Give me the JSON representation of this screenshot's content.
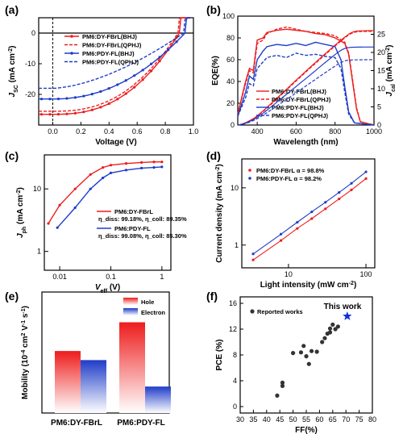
{
  "chart_data": [
    {
      "panel": "(a)",
      "type": "line",
      "xlabel": "Voltage (V)",
      "ylabel": "J_SC (mA cm^-2)",
      "xlim": [
        -0.1,
        1.0
      ],
      "ylim": [
        -30,
        5
      ],
      "xticks": [
        "0.0",
        "0.2",
        "0.4",
        "0.6",
        "0.8",
        "1.0"
      ],
      "yticks": [
        "0",
        "-10",
        "-20"
      ],
      "series": [
        {
          "name": "PM6:DY-FBrL(BHJ)",
          "color": "#ee1c1c",
          "style": "solid-marker",
          "jsc": -26.5,
          "voc": 0.9,
          "ff": 0.76
        },
        {
          "name": "PM6:DY-FBrL(QPHJ)",
          "color": "#ee1c1c",
          "style": "dashed",
          "jsc": -25.5,
          "voc": 0.89,
          "ff": 0.76
        },
        {
          "name": "PM6:PDY-FL(BHJ)",
          "color": "#1f3cc8",
          "style": "solid-marker",
          "jsc": -21.5,
          "voc": 0.94,
          "ff": 0.72
        },
        {
          "name": "PM6:PDY-FL(QPHJ)",
          "color": "#1f3cc8",
          "style": "dashed",
          "jsc": -18.0,
          "voc": 0.93,
          "ff": 0.63
        }
      ]
    },
    {
      "panel": "(b)",
      "type": "line",
      "xlabel": "Wavelength (nm)",
      "ylabel": "EQE(%)",
      "ylabel2": "J_cal (mA cm^-2)",
      "xlim": [
        300,
        1000
      ],
      "ylim": [
        0,
        100
      ],
      "ylim2": [
        0,
        30
      ],
      "xticks": [
        "400",
        "600",
        "800",
        "1000"
      ],
      "yticks": [
        "0",
        "20",
        "40",
        "60",
        "80",
        "100"
      ],
      "yticks2": [
        "0",
        "5",
        "10",
        "15",
        "20",
        "25"
      ],
      "series": [
        {
          "name": "PM6:DY-FBrL(BHJ)",
          "color": "#ee1c1c",
          "style": "solid",
          "x": [
            300,
            340,
            360,
            380,
            400,
            430,
            450,
            500,
            550,
            600,
            650,
            700,
            750,
            800,
            850,
            870,
            890,
            910,
            930,
            1000
          ],
          "y": [
            10,
            40,
            52,
            50,
            78,
            80,
            85,
            87,
            88,
            87,
            86,
            84,
            83,
            80,
            75,
            65,
            40,
            15,
            3,
            0
          ],
          "jsc_final": 26.0
        },
        {
          "name": "PM6:DY-FBrL(QPHJ)",
          "color": "#ee1c1c",
          "style": "dashed",
          "x": [
            300,
            340,
            360,
            380,
            400,
            430,
            450,
            500,
            550,
            600,
            650,
            700,
            750,
            800,
            850,
            870,
            890,
            910,
            930,
            1000
          ],
          "y": [
            10,
            38,
            50,
            48,
            75,
            78,
            84,
            88,
            90,
            88,
            86,
            85,
            84,
            82,
            76,
            66,
            42,
            16,
            3,
            0
          ],
          "jsc_final": 25.8
        },
        {
          "name": "PM6:PDY-FL(BHJ)",
          "color": "#1f3cc8",
          "style": "solid",
          "x": [
            300,
            340,
            360,
            380,
            400,
            430,
            450,
            500,
            550,
            600,
            650,
            700,
            750,
            800,
            830,
            850,
            870,
            900,
            1000
          ],
          "y": [
            8,
            30,
            45,
            42,
            60,
            68,
            72,
            74,
            73,
            75,
            73,
            76,
            74,
            72,
            60,
            35,
            12,
            2,
            0
          ],
          "jsc_final": 21.5
        },
        {
          "name": "PM6:PDY-FL(QPHJ)",
          "color": "#1f3cc8",
          "style": "dashed",
          "x": [
            300,
            340,
            360,
            380,
            400,
            430,
            450,
            500,
            550,
            600,
            650,
            700,
            750,
            800,
            830,
            850,
            870,
            900,
            1000
          ],
          "y": [
            8,
            25,
            38,
            36,
            52,
            58,
            62,
            64,
            62,
            66,
            64,
            65,
            63,
            62,
            52,
            30,
            10,
            2,
            0
          ],
          "jsc_final": 18.0
        }
      ]
    },
    {
      "panel": "(c)",
      "type": "line",
      "xlabel": "V_eff (V)",
      "ylabel": "J_ph (mA cm^-2)",
      "xscale": "log",
      "yscale": "log",
      "xlim": [
        0.005,
        1.5
      ],
      "ylim": [
        0.5,
        35
      ],
      "xticks": [
        "0.01",
        "0.1",
        "1"
      ],
      "yticks": [
        "1",
        "10"
      ],
      "series": [
        {
          "name": "PM6:DY-FBrL",
          "color": "#ee1c1c",
          "x": [
            0.006,
            0.01,
            0.02,
            0.04,
            0.07,
            0.1,
            0.2,
            0.4,
            0.7,
            1.0
          ],
          "y": [
            2.8,
            5.5,
            10,
            17,
            22,
            24,
            25.5,
            26.5,
            27,
            27
          ],
          "annotation": "η_diss: 99.18%, η_coll: 89.35%"
        },
        {
          "name": "PM6:PDY-FL",
          "color": "#1f3cc8",
          "x": [
            0.009,
            0.02,
            0.04,
            0.07,
            0.1,
            0.2,
            0.4,
            0.7,
            1.0
          ],
          "y": [
            2.4,
            5,
            10,
            15,
            18,
            20,
            21.5,
            22,
            22.5
          ],
          "annotation": "η_diss: 99.08%, η_coll: 85.30%"
        }
      ]
    },
    {
      "panel": "(d)",
      "type": "scatter",
      "xlabel": "Light intensity (mW cm^-2)",
      "ylabel": "Current density (mA cm^-2)",
      "xscale": "log",
      "yscale": "log",
      "xlim": [
        2.5,
        130
      ],
      "ylim": [
        0.4,
        32
      ],
      "xticks": [
        "10",
        "100"
      ],
      "yticks": [
        "1",
        "10"
      ],
      "series": [
        {
          "name": "PM6:DY-FBrL",
          "alpha_label": "α = 98.8%",
          "color": "#ee1c1c",
          "x": [
            3.5,
            8,
            13,
            20,
            30,
            45,
            65,
            100
          ],
          "y": [
            0.55,
            1.2,
            1.95,
            2.9,
            4.3,
            6.4,
            9.2,
            14.5
          ]
        },
        {
          "name": "PM6:PDY-FL",
          "alpha_label": "α = 98.2%",
          "color": "#1f3cc8",
          "x": [
            3.5,
            8,
            13,
            20,
            30,
            45,
            65,
            100
          ],
          "y": [
            0.7,
            1.55,
            2.5,
            3.8,
            5.6,
            8.3,
            12,
            19
          ]
        }
      ]
    },
    {
      "panel": "(e)",
      "type": "bar",
      "ylabel": "Mobility (10^-4 cm^2 V^-1 s^-1)",
      "ylim": [
        0,
        16
      ],
      "categories": [
        "PM6:DY-FBrL",
        "PM6:PDY-FL"
      ],
      "series": [
        {
          "name": "Hole",
          "color": "#ee1c1c",
          "values": [
            8.2,
            12.0
          ]
        },
        {
          "name": "Electron",
          "color": "#1f3cc8",
          "values": [
            7.0,
            3.5
          ]
        }
      ]
    },
    {
      "panel": "(f)",
      "type": "scatter",
      "xlabel": "FF(%)",
      "ylabel": "PCE (%)",
      "xlim": [
        30,
        80
      ],
      "ylim": [
        -1,
        17
      ],
      "xticks": [
        "30",
        "35",
        "40",
        "45",
        "50",
        "55",
        "60",
        "65",
        "70",
        "75",
        "80"
      ],
      "yticks": [
        "0",
        "4",
        "8",
        "12",
        "16"
      ],
      "series": [
        {
          "name": "Reported works",
          "color": "#333333",
          "x": [
            44,
            46,
            46,
            50,
            53,
            54,
            55,
            56,
            57,
            59,
            61,
            62,
            63,
            64,
            64,
            65,
            66,
            67
          ],
          "y": [
            1.7,
            3.2,
            3.7,
            8.3,
            8.4,
            9.4,
            7.8,
            6.6,
            8.6,
            8.5,
            10,
            10.6,
            11.3,
            11.5,
            12.1,
            12.7,
            12,
            12.4
          ]
        },
        {
          "name": "This work",
          "color": "#1030d8",
          "x": [
            70.5
          ],
          "y": [
            14.0
          ]
        }
      ]
    }
  ],
  "labels": {
    "a": "(a)",
    "b": "(b)",
    "c": "(c)",
    "d": "(d)",
    "e": "(e)",
    "f": "(f)",
    "a_xlabel": "Voltage (V)",
    "b_xlabel": "Wavelength (nm)",
    "b_ylabel": "EQE(%)",
    "c_xlabel": "V",
    "c_xlabel_sub": "eff",
    "c_xlabel_unit": " (V)",
    "d_xlabel": "Light intensity (mW cm",
    "d_ylabel": "Current density (mA cm",
    "f_xlabel": "FF(%)",
    "f_ylabel": "PCE (%)",
    "c_leg1": "PM6:DY-FBrL",
    "c_leg1_eta": "η_diss: 99.18%, η_coll: 89.35%",
    "c_leg2": "PM6:PDY-FL",
    "c_leg2_eta": "η_diss: 99.08%, η_coll: 85.30%",
    "d_leg1": "PM6:DY-FBrL  α = 98.8%",
    "d_leg2": "PM6:PDY-FL   α = 98.2%",
    "e_leg1": "Hole",
    "e_leg2": "Electron",
    "e_cat1": "PM6:DY-FBrL",
    "e_cat2": "PM6:PDY-FL",
    "f_reported": "Reported works",
    "f_thiswork": "This work"
  }
}
